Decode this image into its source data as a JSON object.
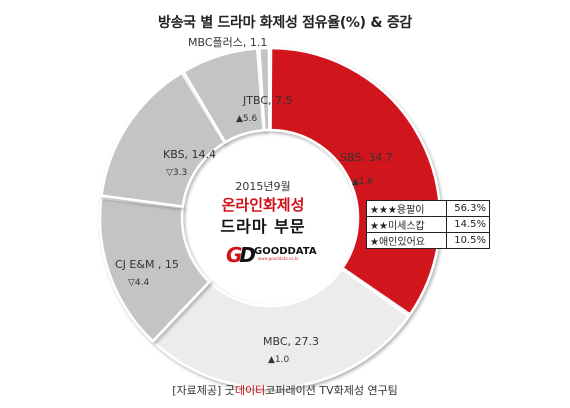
{
  "title": "방송국 별 드라마 화제성 점유율(%) & 증감",
  "chart_data": {
    "type": "pie",
    "title": "방송국 별 드라마 화제성 점유율(%) & 증감",
    "slices": [
      {
        "label": "SBS",
        "value": 34.7,
        "change": "▲1.6",
        "color": "#d0121b"
      },
      {
        "label": "MBC",
        "value": 27.3,
        "change": "▲1.0",
        "color": "#ececec"
      },
      {
        "label": "CJ E&M",
        "value": 15,
        "change": "▽4.4",
        "color": "#c4c4c4"
      },
      {
        "label": "KBS",
        "value": 14.4,
        "change": "▽3.3",
        "color": "#c4c4c4"
      },
      {
        "label": "JTBC",
        "value": 7.5,
        "change": "▲5.6",
        "color": "#c4c4c4"
      },
      {
        "label": "MBC플러스",
        "value": 1.1,
        "change": "",
        "color": "#c4c4c4"
      }
    ],
    "slice_label_text": {
      "SBS": "SBS, 34.7",
      "MBC": "MBC, 27.3",
      "CJ E&M": "CJ E&M , 15",
      "KBS": "KBS, 14.4",
      "JTBC": "JTBC, 7.5",
      "MBC플러스": "MBC플러스, 1.1"
    }
  },
  "center": {
    "date": "2015년9월",
    "main": "온라인화제성",
    "sub": "드라마 부문"
  },
  "logo": {
    "mark": "GD",
    "name": "GOODDATA",
    "url": "www.gooddata.co.kr"
  },
  "programs": [
    {
      "rank": "★★★",
      "name": "용팔이",
      "share": "56.3%"
    },
    {
      "rank": "★★",
      "name": "미세스캅",
      "share": "14.5%"
    },
    {
      "rank": "★",
      "name": "애인있어요",
      "share": "10.5%"
    }
  ],
  "source": {
    "prefix": "[자료제공] 굿",
    "highlight": "데이터",
    "suffix": "코퍼레이션   TV화제성 연구팀"
  },
  "colors": {
    "highlight_red": "#d0121b",
    "light_gray": "#ececec",
    "mid_gray": "#c4c4c4"
  }
}
